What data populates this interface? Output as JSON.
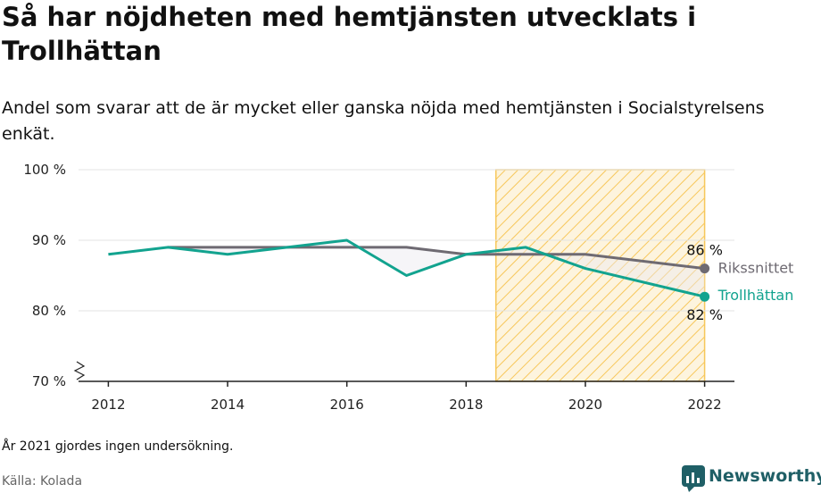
{
  "title": "Så har nöjdheten med hemtjänsten utvecklats i Trollhättan",
  "subtitle": "Andel som svarar att de är mycket eller ganska nöjda med hemtjänsten i Socialstyrelsens enkät.",
  "note": "År 2021 gjordes ingen undersökning.",
  "source": "Källa: Kolada",
  "brand": "Newsworthy",
  "colors": {
    "trollhattan": "#12a38f",
    "riket": "#6e6a72",
    "highlight": "#f7c75a",
    "grid": "#e3e3e3"
  },
  "chart_data": {
    "type": "line",
    "x": [
      2012,
      2013,
      2014,
      2015,
      2016,
      2017,
      2018,
      2019,
      2020,
      2022
    ],
    "series": [
      {
        "name": "Rikssnittet",
        "values": [
          null,
          89,
          89,
          89,
          89,
          89,
          88,
          88,
          88,
          86
        ],
        "end_label": "86 %"
      },
      {
        "name": "Trollhättan",
        "values": [
          88,
          89,
          88,
          89,
          90,
          85,
          88,
          89,
          86,
          82
        ],
        "end_label": "82 %"
      }
    ],
    "xlim": [
      2011.5,
      2022.5
    ],
    "ylim": [
      70,
      100
    ],
    "x_ticks": [
      2012,
      2014,
      2016,
      2018,
      2020,
      2022
    ],
    "x_tick_labels": [
      "2012",
      "2014",
      "2016",
      "2018",
      "2020",
      "2022"
    ],
    "y_ticks": [
      70,
      80,
      90,
      100
    ],
    "y_tick_labels": [
      "70 %",
      "80 %",
      "90 %",
      "100 %"
    ],
    "highlight_range": [
      2018.5,
      2022
    ],
    "grid": true,
    "axis_break": true
  }
}
